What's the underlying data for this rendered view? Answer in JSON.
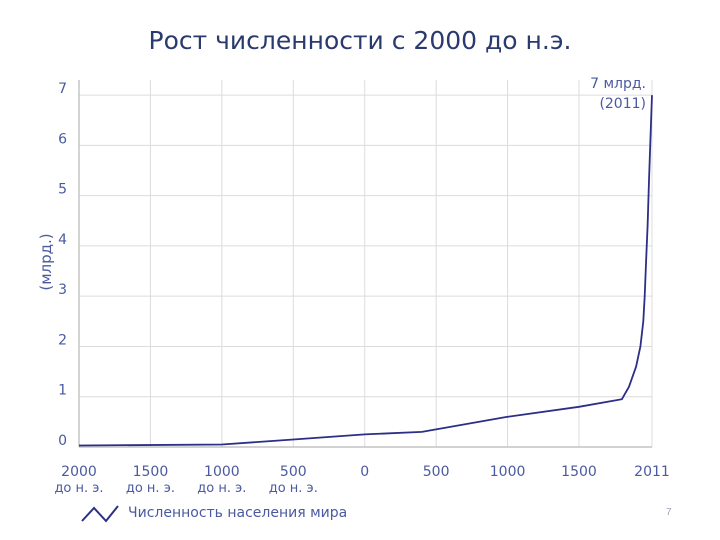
{
  "slide": {
    "title": "Рост численности с 2000 до н.э.",
    "page_number": "7"
  },
  "colors": {
    "line": "#2b2f86",
    "axis_text": "#4a5aa0",
    "grid": "#dcdcdc"
  },
  "chart_data": {
    "type": "line",
    "title": "Рост численности с 2000 до н.э.",
    "ylabel": "(млрд.)",
    "xlabel": "",
    "ylim": [
      0,
      7.3
    ],
    "xlim": [
      -2000,
      2011
    ],
    "grid": true,
    "x_ticks": [
      {
        "value": -2000,
        "label": "2000",
        "sublabel": "до н. э."
      },
      {
        "value": -1500,
        "label": "1500",
        "sublabel": "до н. э."
      },
      {
        "value": -1000,
        "label": "1000",
        "sublabel": "до н. э."
      },
      {
        "value": -500,
        "label": "500",
        "sublabel": "до н. э."
      },
      {
        "value": 0,
        "label": "0",
        "sublabel": ""
      },
      {
        "value": 500,
        "label": "500",
        "sublabel": ""
      },
      {
        "value": 1000,
        "label": "1000",
        "sublabel": ""
      },
      {
        "value": 1500,
        "label": "1500",
        "sublabel": ""
      },
      {
        "value": 2011,
        "label": "2011",
        "sublabel": ""
      }
    ],
    "y_ticks": [
      0,
      1,
      2,
      3,
      4,
      5,
      6,
      7
    ],
    "legend": {
      "label": "Численность населения мира",
      "placement": "bottom-left"
    },
    "annotation": {
      "line1": "7 млрд.",
      "line2": "(2011)",
      "x": 2011,
      "y": 7
    },
    "series": [
      {
        "name": "Численность населения мира",
        "x": [
          -2000,
          -1000,
          -500,
          0,
          400,
          1000,
          1500,
          1800,
          1850,
          1900,
          1930,
          1950,
          1960,
          1970,
          1980,
          1990,
          2000,
          2011
        ],
        "y": [
          0.03,
          0.05,
          0.15,
          0.25,
          0.3,
          0.6,
          0.8,
          0.95,
          1.2,
          1.6,
          2.0,
          2.5,
          3.0,
          3.7,
          4.4,
          5.3,
          6.1,
          7.0
        ]
      }
    ]
  }
}
